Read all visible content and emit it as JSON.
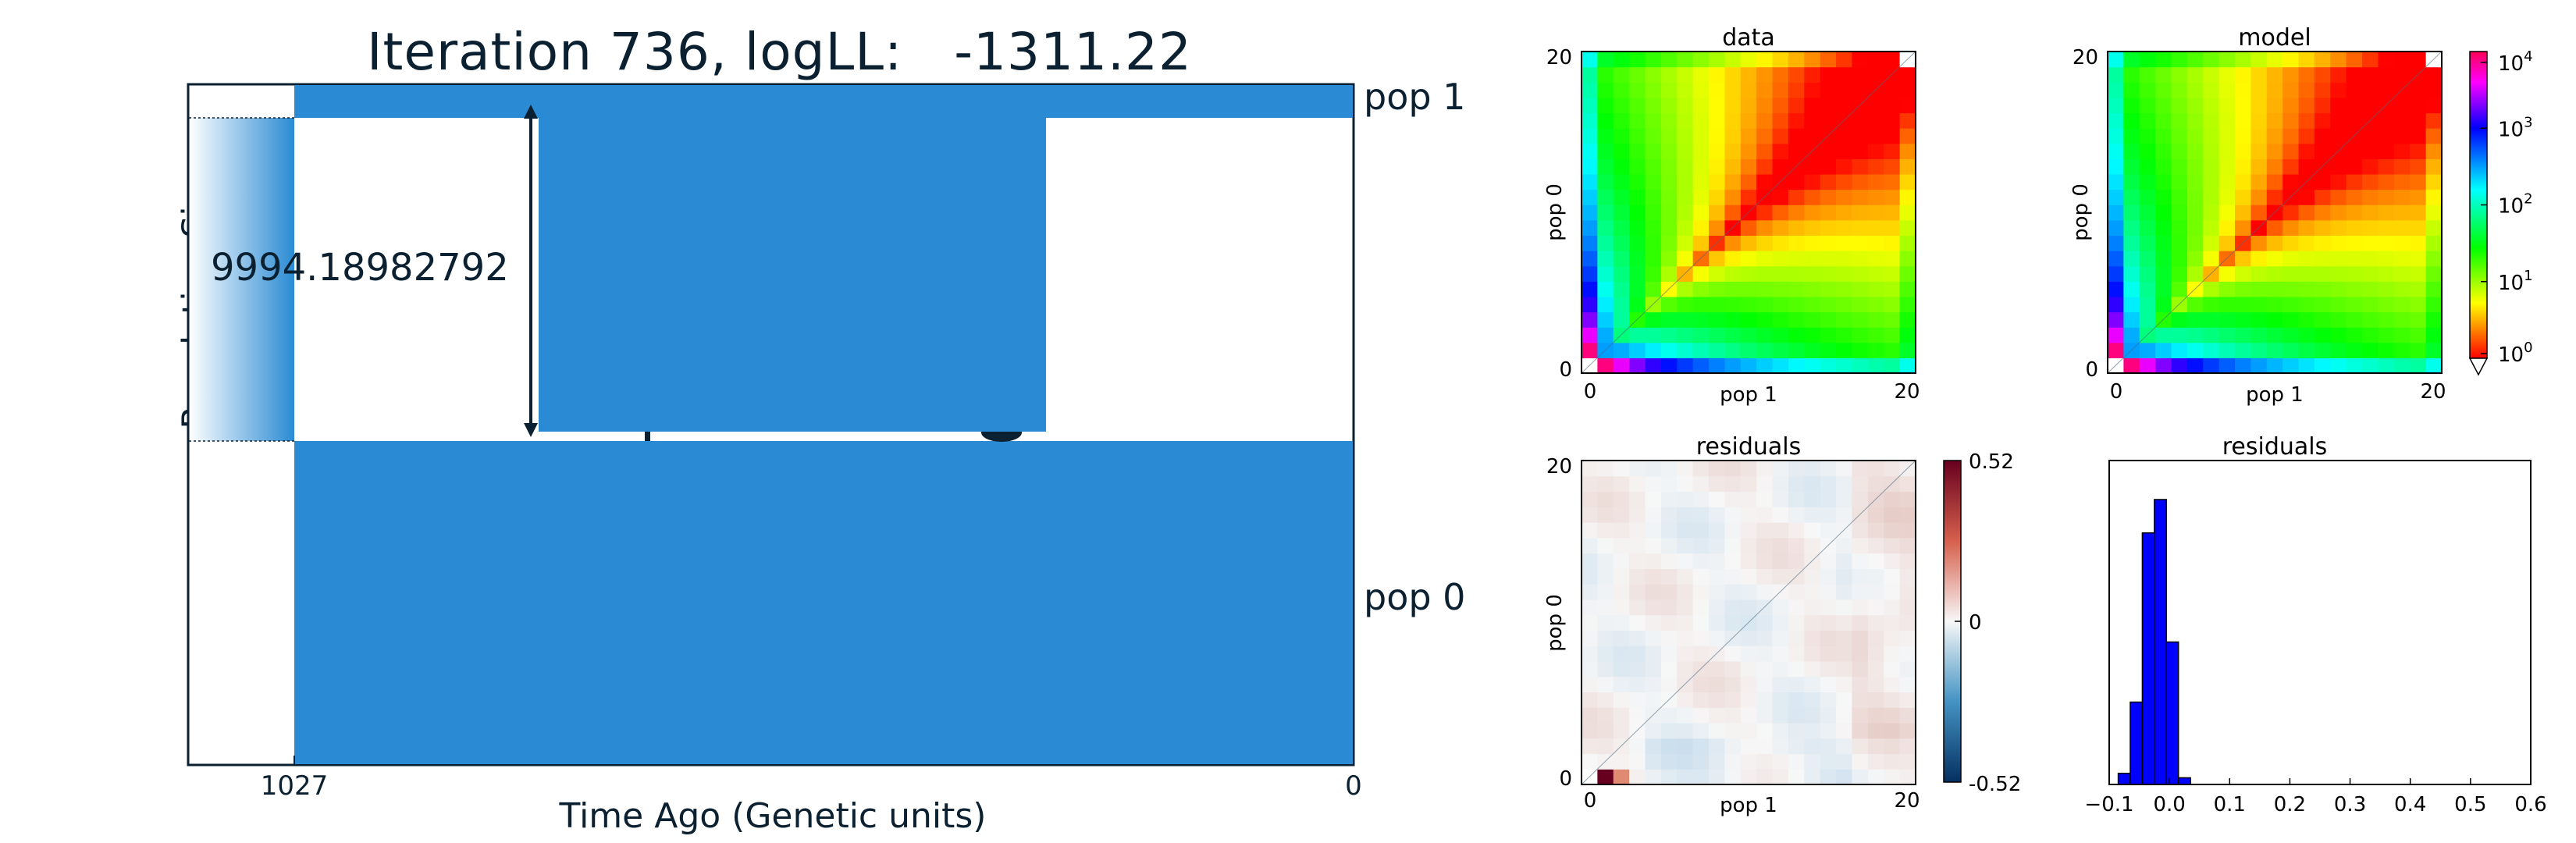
{
  "colors": {
    "pop_fill": "#2a8bd4",
    "ink": "#0b2030",
    "hist_bar": "#0000ff"
  },
  "chart_data": [
    {
      "type": "area",
      "title": "Iteration 736, logLL:   -1311.22",
      "xlabel": "Time Ago (Genetic units)",
      "ylabel": "Population Sizes",
      "x_ticks": [
        "1027",
        "0"
      ],
      "populations": [
        "pop 1",
        "pop 0"
      ],
      "annotation": "9994.18982792"
    },
    {
      "type": "heatmap",
      "title": "data",
      "xlabel": "pop 1",
      "ylabel": "pop 0",
      "x_ticks": [
        "0",
        "20"
      ],
      "y_ticks": [
        "0",
        "20"
      ]
    },
    {
      "type": "heatmap",
      "title": "model",
      "xlabel": "pop 1",
      "ylabel": "pop 0",
      "x_ticks": [
        "0",
        "20"
      ],
      "y_ticks": [
        "0",
        "20"
      ],
      "colorbar": {
        "scale": "log",
        "ticks": [
          {
            "base": "10",
            "exp": "4"
          },
          {
            "base": "10",
            "exp": "3"
          },
          {
            "base": "10",
            "exp": "2"
          },
          {
            "base": "10",
            "exp": "1"
          },
          {
            "base": "10",
            "exp": "0"
          }
        ]
      }
    },
    {
      "type": "heatmap",
      "title": "residuals",
      "xlabel": "pop 1",
      "ylabel": "pop 0",
      "x_ticks": [
        "0",
        "20"
      ],
      "y_ticks": [
        "0",
        "20"
      ],
      "colorbar": {
        "ticks": [
          "0.52",
          "0",
          "-0.52"
        ]
      }
    },
    {
      "type": "bar",
      "title": "residuals",
      "x_ticks": [
        "−0.1",
        "0.0",
        "0.1",
        "0.2",
        "0.3",
        "0.4",
        "0.5",
        "0.6"
      ],
      "xlim": [
        -0.1,
        0.6
      ],
      "bins": [
        {
          "x0": -0.085,
          "x1": -0.065,
          "count": 5
        },
        {
          "x0": -0.065,
          "x1": -0.045,
          "count": 37
        },
        {
          "x0": -0.045,
          "x1": -0.025,
          "count": 113
        },
        {
          "x0": -0.025,
          "x1": -0.005,
          "count": 128
        },
        {
          "x0": -0.005,
          "x1": 0.015,
          "count": 64
        },
        {
          "x0": 0.015,
          "x1": 0.035,
          "count": 3
        }
      ]
    }
  ]
}
